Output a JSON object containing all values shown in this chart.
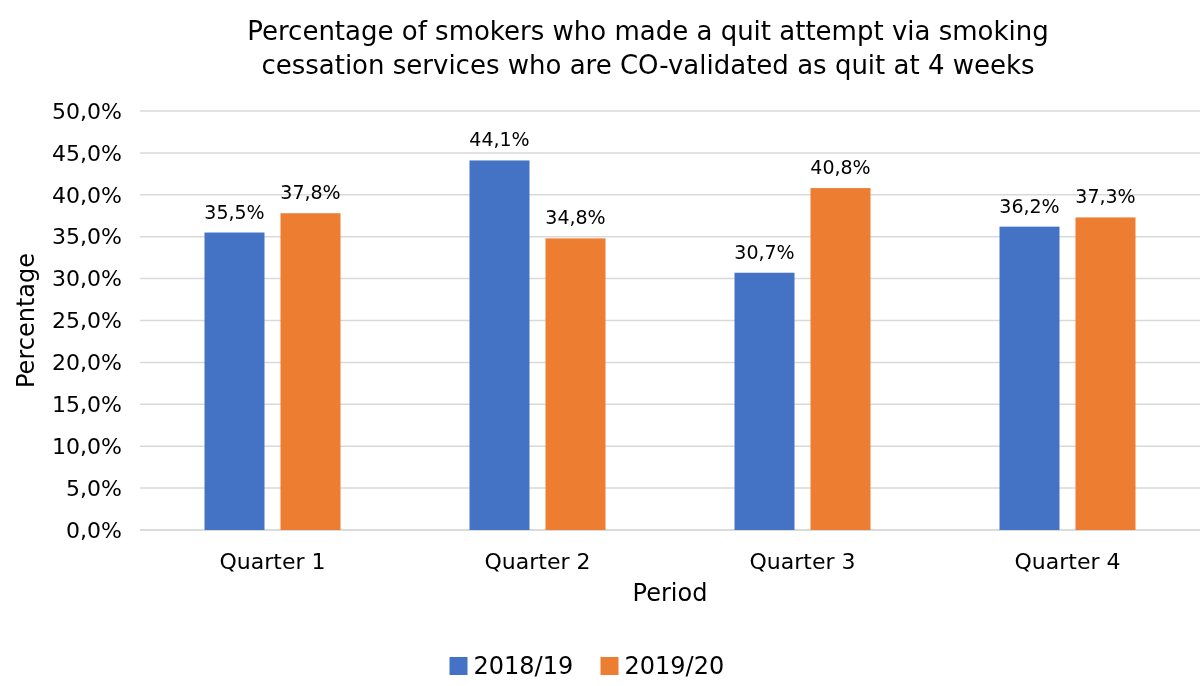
{
  "chart_data": {
    "type": "bar",
    "title": "Percentage of smokers who made a quit attempt via smoking cessation services who are CO-validated as quit at 4 weeks",
    "xlabel": "Period",
    "ylabel": "Percentage",
    "categories": [
      "Quarter 1",
      "Quarter 2",
      "Quarter 3",
      "Quarter 4"
    ],
    "series": [
      {
        "name": "2018/19",
        "color": "#4472c4",
        "values": [
          35.5,
          44.1,
          30.7,
          36.2
        ],
        "value_labels": [
          "35,5%",
          "44,1%",
          "30,7%",
          "36,2%"
        ]
      },
      {
        "name": "2019/20",
        "color": "#ed7d31",
        "values": [
          37.8,
          34.8,
          40.8,
          37.3
        ],
        "value_labels": [
          "37,8%",
          "34,8%",
          "40,8%",
          "37,3%"
        ]
      }
    ],
    "ylim": [
      0,
      50
    ],
    "yticks": [
      {
        "value": 0,
        "label": "0,0%"
      },
      {
        "value": 5,
        "label": "5,0%"
      },
      {
        "value": 10,
        "label": "10,0%"
      },
      {
        "value": 15,
        "label": "15,0%"
      },
      {
        "value": 20,
        "label": "20,0%"
      },
      {
        "value": 25,
        "label": "25,0%"
      },
      {
        "value": 30,
        "label": "30,0%"
      },
      {
        "value": 35,
        "label": "35,0%"
      },
      {
        "value": 40,
        "label": "40,0%"
      },
      {
        "value": 45,
        "label": "45,0%"
      },
      {
        "value": 50,
        "label": "50,0%"
      }
    ],
    "grid": "y",
    "legend": "bottom"
  }
}
